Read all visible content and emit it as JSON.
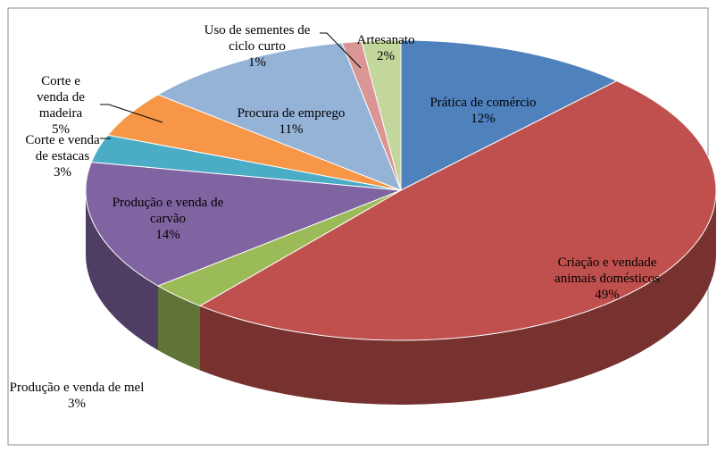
{
  "chart_data": {
    "type": "pie3d",
    "categories": [
      "Prática de comércio",
      "Criação e vendade animais domésticos",
      "Produção e venda de mel",
      "Produção e venda de carvão",
      "Corte e venda de estacas",
      "Corte e venda de madeira",
      "Procura de emprego",
      "Uso de sementes de ciclo curto",
      "Artesanato"
    ],
    "values": [
      12,
      49,
      3,
      14,
      3,
      5,
      11,
      1,
      2
    ],
    "value_labels": [
      "12%",
      "49%",
      "3%",
      "14%",
      "3%",
      "5%",
      "11%",
      "1%",
      "2%"
    ],
    "colors": [
      "#4f81bd",
      "#c0504d",
      "#9bbb59",
      "#8064a2",
      "#4bacc6",
      "#f79646",
      "#95b3d7",
      "#d99694",
      "#c3d69b"
    ]
  }
}
